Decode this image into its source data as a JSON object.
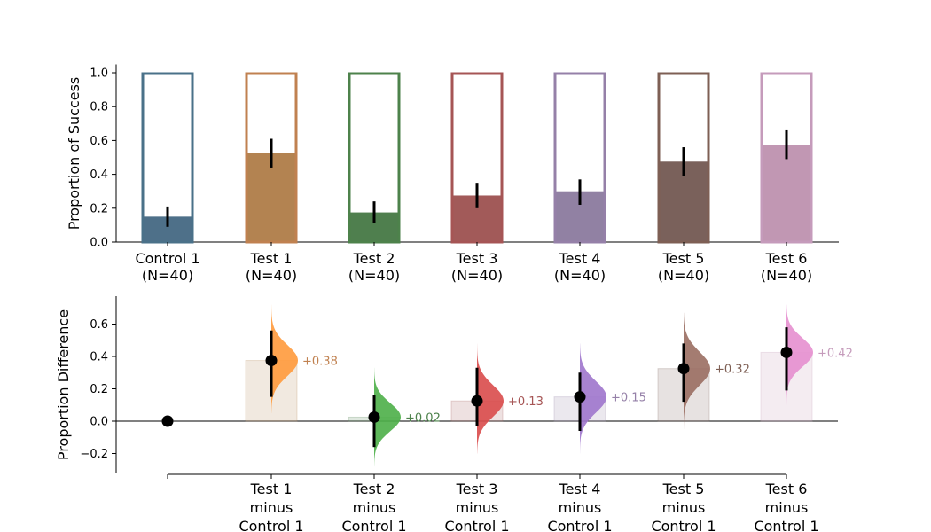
{
  "chart_data": [
    {
      "type": "bar",
      "ylabel": "Proportion of Success",
      "ylim": [
        0,
        1.05
      ],
      "yticks": [
        "0.0",
        "0.2",
        "0.4",
        "0.6",
        "0.8",
        "1.0"
      ],
      "categories": [
        "Control 1\n(N=40)",
        "Test 1\n(N=40)",
        "Test 2\n(N=40)",
        "Test 3\n(N=40)",
        "Test 4\n(N=40)",
        "Test 5\n(N=40)",
        "Test 6\n(N=40)"
      ],
      "values": [
        0.15,
        0.525,
        0.175,
        0.275,
        0.3,
        0.475,
        0.575
      ],
      "error_bars": [
        [
          0.09,
          0.21
        ],
        [
          0.44,
          0.61
        ],
        [
          0.11,
          0.24
        ],
        [
          0.2,
          0.35
        ],
        [
          0.22,
          0.37
        ],
        [
          0.39,
          0.56
        ],
        [
          0.49,
          0.66
        ]
      ],
      "colors": [
        "#4e7089",
        "#b38351",
        "#4f7f4e",
        "#a25a59",
        "#9181a3",
        "#7a615b",
        "#c197b3"
      ],
      "outline_colors": [
        "#4a7189",
        "#c08150",
        "#4d824b",
        "#a65555",
        "#9580a8",
        "#7e5f54",
        "#c59bbb"
      ]
    },
    {
      "type": "scatter",
      "ylabel": "Proportion Difference",
      "ylim": [
        -0.3,
        0.78
      ],
      "yticks": [
        "−0.2",
        "0.0",
        "0.2",
        "0.4",
        "0.6"
      ],
      "categories": [
        "",
        "Test 1\nminus\nControl 1",
        "Test 2\nminus\nControl 1",
        "Test 3\nminus\nControl 1",
        "Test 4\nminus\nControl 1",
        "Test 5\nminus\nControl 1",
        "Test 6\nminus\nControl 1"
      ],
      "values": [
        0.0,
        0.375,
        0.025,
        0.125,
        0.15,
        0.325,
        0.425
      ],
      "labels": [
        "",
        "+0.38",
        "+0.02",
        "+0.13",
        "+0.15",
        "+0.32",
        "+0.42"
      ],
      "ci": [
        null,
        [
          0.15,
          0.56
        ],
        [
          -0.16,
          0.16
        ],
        [
          -0.03,
          0.33
        ],
        [
          -0.06,
          0.3
        ],
        [
          0.12,
          0.48
        ],
        [
          0.19,
          0.58
        ]
      ],
      "dist_range": [
        null,
        [
          0.05,
          0.72
        ],
        [
          -0.28,
          0.33
        ],
        [
          -0.2,
          0.48
        ],
        [
          -0.2,
          0.48
        ],
        [
          -0.05,
          0.67
        ],
        [
          0.1,
          0.72
        ]
      ],
      "colors": [
        "#000000",
        "#ff9a3c",
        "#4caf48",
        "#d94b4b",
        "#9e75cc",
        "#9a6e62",
        "#e58fcf"
      ],
      "label_colors": [
        "#000000",
        "#c08150",
        "#4d824b",
        "#a65555",
        "#9580a8",
        "#7e5f54",
        "#c59bbb"
      ]
    }
  ]
}
